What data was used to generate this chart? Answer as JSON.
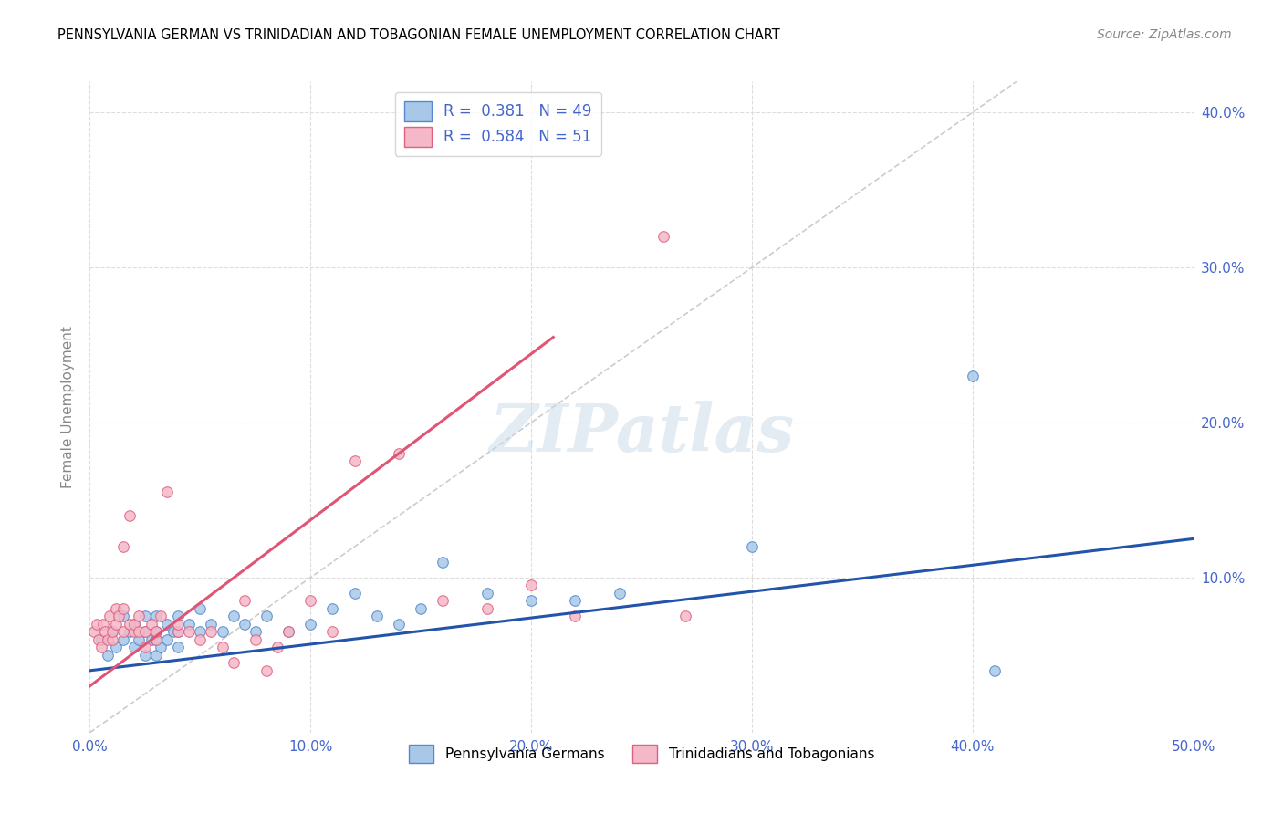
{
  "title": "PENNSYLVANIA GERMAN VS TRINIDADIAN AND TOBAGONIAN FEMALE UNEMPLOYMENT CORRELATION CHART",
  "source": "Source: ZipAtlas.com",
  "ylabel": "Female Unemployment",
  "xlim": [
    0.0,
    0.5
  ],
  "ylim": [
    0.0,
    0.42
  ],
  "xtick_labels": [
    "0.0%",
    "10.0%",
    "20.0%",
    "30.0%",
    "40.0%",
    "50.0%"
  ],
  "xtick_vals": [
    0.0,
    0.1,
    0.2,
    0.3,
    0.4,
    0.5
  ],
  "ytick_labels": [
    "10.0%",
    "20.0%",
    "30.0%",
    "40.0%"
  ],
  "ytick_vals": [
    0.1,
    0.2,
    0.3,
    0.4
  ],
  "blue_R": 0.381,
  "blue_N": 49,
  "pink_R": 0.584,
  "pink_N": 51,
  "blue_color": "#a8c8e8",
  "pink_color": "#f4b8c8",
  "blue_edge_color": "#5588cc",
  "pink_edge_color": "#e06080",
  "blue_line_color": "#2255aa",
  "pink_line_color": "#e05575",
  "diag_line_color": "#cccccc",
  "grid_color": "#dddddd",
  "background_color": "#ffffff",
  "watermark": "ZIPatlas",
  "legend_text_color": "#4466cc",
  "blue_scatter_x": [
    0.005,
    0.008,
    0.01,
    0.012,
    0.015,
    0.015,
    0.018,
    0.02,
    0.02,
    0.022,
    0.025,
    0.025,
    0.025,
    0.028,
    0.03,
    0.03,
    0.03,
    0.03,
    0.032,
    0.035,
    0.035,
    0.038,
    0.04,
    0.04,
    0.04,
    0.045,
    0.05,
    0.05,
    0.055,
    0.06,
    0.065,
    0.07,
    0.075,
    0.08,
    0.09,
    0.1,
    0.11,
    0.12,
    0.13,
    0.14,
    0.15,
    0.16,
    0.18,
    0.2,
    0.22,
    0.24,
    0.3,
    0.4,
    0.41
  ],
  "blue_scatter_y": [
    0.06,
    0.05,
    0.065,
    0.055,
    0.06,
    0.075,
    0.065,
    0.055,
    0.07,
    0.06,
    0.065,
    0.05,
    0.075,
    0.06,
    0.05,
    0.06,
    0.065,
    0.075,
    0.055,
    0.06,
    0.07,
    0.065,
    0.055,
    0.065,
    0.075,
    0.07,
    0.065,
    0.08,
    0.07,
    0.065,
    0.075,
    0.07,
    0.065,
    0.075,
    0.065,
    0.07,
    0.08,
    0.09,
    0.075,
    0.07,
    0.08,
    0.11,
    0.09,
    0.085,
    0.085,
    0.09,
    0.12,
    0.23,
    0.04
  ],
  "pink_scatter_x": [
    0.002,
    0.003,
    0.004,
    0.005,
    0.006,
    0.007,
    0.008,
    0.009,
    0.01,
    0.01,
    0.012,
    0.012,
    0.013,
    0.015,
    0.015,
    0.015,
    0.018,
    0.018,
    0.02,
    0.02,
    0.022,
    0.022,
    0.025,
    0.025,
    0.028,
    0.03,
    0.03,
    0.032,
    0.035,
    0.04,
    0.04,
    0.045,
    0.05,
    0.055,
    0.06,
    0.065,
    0.07,
    0.075,
    0.08,
    0.085,
    0.09,
    0.1,
    0.11,
    0.12,
    0.14,
    0.16,
    0.18,
    0.2,
    0.22,
    0.26,
    0.27
  ],
  "pink_scatter_y": [
    0.065,
    0.07,
    0.06,
    0.055,
    0.07,
    0.065,
    0.06,
    0.075,
    0.06,
    0.065,
    0.07,
    0.08,
    0.075,
    0.065,
    0.08,
    0.12,
    0.07,
    0.14,
    0.065,
    0.07,
    0.065,
    0.075,
    0.055,
    0.065,
    0.07,
    0.06,
    0.065,
    0.075,
    0.155,
    0.065,
    0.07,
    0.065,
    0.06,
    0.065,
    0.055,
    0.045,
    0.085,
    0.06,
    0.04,
    0.055,
    0.065,
    0.085,
    0.065,
    0.175,
    0.18,
    0.085,
    0.08,
    0.095,
    0.075,
    0.32,
    0.075
  ],
  "pink_line_start_x": 0.0,
  "pink_line_end_x": 0.21,
  "pink_line_start_y": 0.03,
  "pink_line_end_y": 0.255,
  "blue_line_start_x": 0.0,
  "blue_line_end_x": 0.5,
  "blue_line_start_y": 0.04,
  "blue_line_end_y": 0.125
}
